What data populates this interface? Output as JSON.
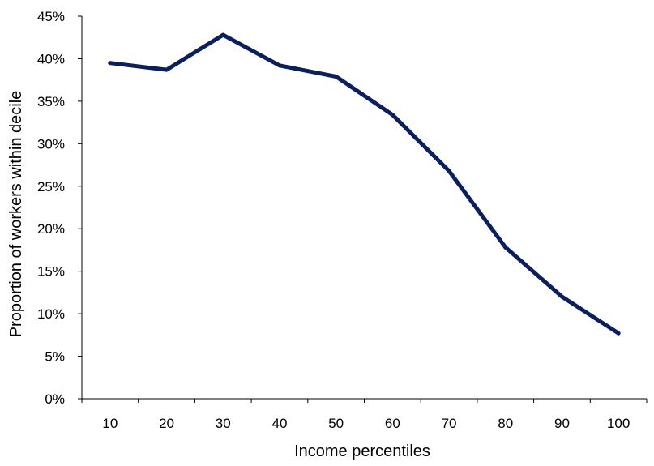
{
  "chart_data": {
    "type": "line",
    "title": "",
    "xlabel": "Income percentiles",
    "ylabel": "Proportion of workers within decile",
    "x": [
      10,
      20,
      30,
      40,
      50,
      60,
      70,
      80,
      90,
      100
    ],
    "x_tick_labels": [
      "10",
      "20",
      "30",
      "40",
      "50",
      "60",
      "70",
      "80",
      "90",
      "100"
    ],
    "y_tick_labels": [
      "0%",
      "5%",
      "10%",
      "15%",
      "20%",
      "25%",
      "30%",
      "35%",
      "40%",
      "45%"
    ],
    "ylim": [
      0,
      45
    ],
    "y_unit": "%",
    "grid": false,
    "legend": "none",
    "series": [
      {
        "values": [
          39.5,
          38.7,
          42.8,
          39.2,
          37.9,
          33.4,
          26.8,
          17.8,
          12.0,
          7.7
        ],
        "color": "#0b1f5c"
      }
    ],
    "colors": {
      "axis": "#000000",
      "text": "#000000"
    }
  }
}
